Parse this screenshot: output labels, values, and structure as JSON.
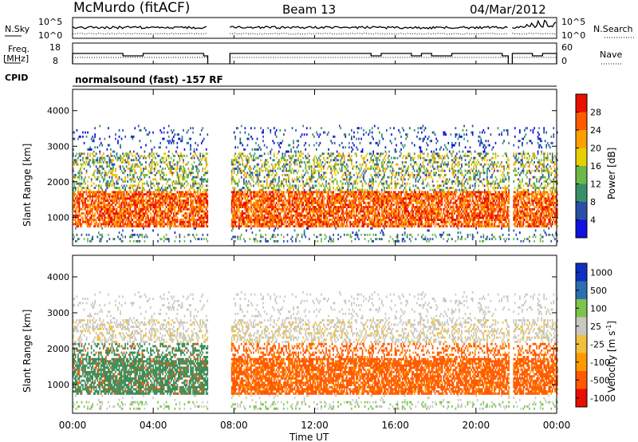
{
  "header": {
    "station": "McMurdo (fitACF)",
    "beam": "Beam 13",
    "date": "04/Mar/2012"
  },
  "top_panels": {
    "nsky_label": "N.Sky",
    "nsky_ticks": [
      "10^5",
      "10^0"
    ],
    "nsearch_label": "N.Search",
    "nsearch_ticks": [
      "10^5",
      "10^0"
    ],
    "freq_label_1": "Freq.",
    "freq_label_2": "[MHz]",
    "freq_ticks": [
      "18",
      "8"
    ],
    "nave_label": "Nave",
    "nave_ticks": [
      "60",
      "0"
    ],
    "cpid_label": "CPID",
    "cpid_text": "normalsound (fast) -157 RF"
  },
  "colors": {
    "power": [
      "#1010e0",
      "#2b4fa8",
      "#3a8f6b",
      "#6db84a",
      "#e8d000",
      "#ffa000",
      "#ff5a00",
      "#e81000"
    ],
    "velocity": [
      "#e81000",
      "#ff5a00",
      "#ff9a00",
      "#f0c040",
      "#c8c8c0",
      "#7cc44a",
      "#2b6fb0",
      "#1030c0"
    ],
    "velocity_green": "#3c8c5a"
  },
  "chart_data": [
    {
      "type": "heatmap",
      "quantity": "power",
      "ylabel": "Slant Range [km]",
      "ylim": [
        200,
        4600
      ],
      "yticks": [
        "1000",
        "2000",
        "3000",
        "4000"
      ],
      "xlim_hours": [
        0,
        24
      ],
      "data_gaps_ut": [
        [
          6.7,
          7.8
        ],
        [
          21.6,
          21.8
        ]
      ],
      "colorbar": {
        "label": "Power [dB]",
        "tick_labels": [
          "4",
          "8",
          "12",
          "16",
          "20",
          "24",
          "28"
        ],
        "range": [
          0,
          32
        ]
      }
    },
    {
      "type": "heatmap",
      "quantity": "velocity",
      "ylabel": "Slant Range [km]",
      "ylim": [
        200,
        4600
      ],
      "yticks": [
        "1000",
        "2000",
        "3000",
        "4000"
      ],
      "xlim_hours": [
        0,
        24
      ],
      "colorbar": {
        "label": "Velocity [m s",
        "label_sup": "-1",
        "label_end": "]",
        "tick_labels": [
          "-1000",
          "-500",
          "-100",
          "-25",
          "25",
          "100",
          "500",
          "1000"
        ]
      }
    }
  ],
  "time_axis": {
    "label": "Time UT",
    "ticks": [
      "00:00",
      "04:00",
      "08:00",
      "12:00",
      "16:00",
      "20:00",
      "00:00"
    ]
  }
}
